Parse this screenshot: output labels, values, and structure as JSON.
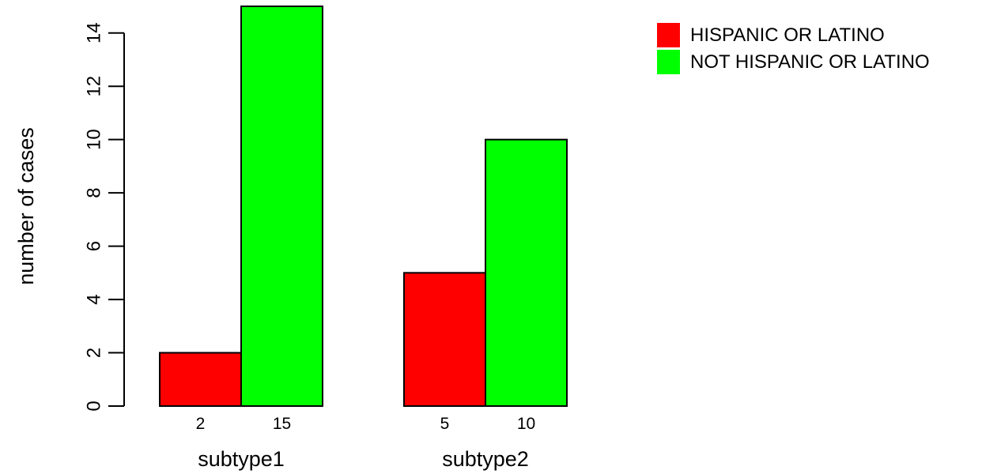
{
  "chart_data": {
    "type": "bar",
    "title": "",
    "xlabel": "",
    "ylabel": "number of cases",
    "ylim": [
      0,
      15
    ],
    "yticks": [
      0,
      2,
      4,
      6,
      8,
      10,
      12,
      14
    ],
    "categories": [
      "subtype1",
      "subtype2"
    ],
    "series": [
      {
        "name": "HISPANIC OR LATINO",
        "color": "#ff0000",
        "values": [
          2,
          5
        ]
      },
      {
        "name": "NOT HISPANIC OR LATINO",
        "color": "#00ff00",
        "values": [
          15,
          10
        ]
      }
    ],
    "bar_value_labels": [
      [
        "2",
        "15"
      ],
      [
        "5",
        "10"
      ]
    ],
    "legend_position": "top-right",
    "grid": false
  }
}
